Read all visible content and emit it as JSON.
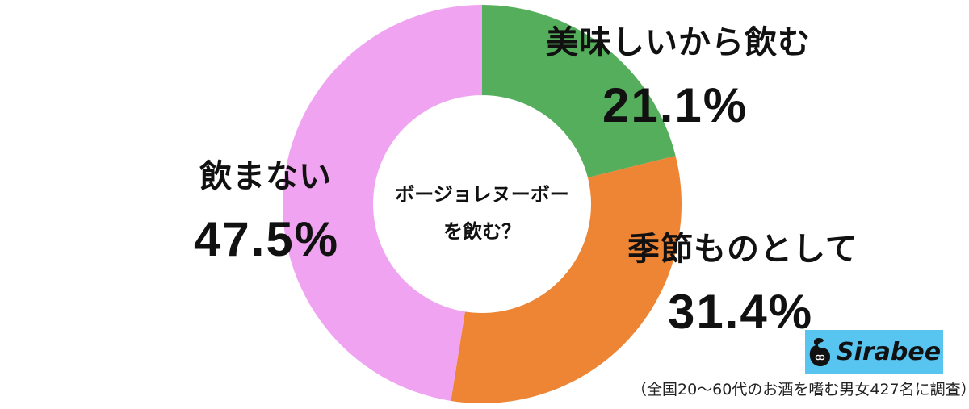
{
  "chart_data": {
    "type": "pie",
    "variant": "donut",
    "title": "ボージョレヌーボーを飲む？",
    "categories": [
      "美味しいから飲む",
      "季節ものとして",
      "飲まない"
    ],
    "values": [
      21.1,
      31.4,
      47.5
    ],
    "unit": "%",
    "colors": [
      "#55ae5c",
      "#ee8534",
      "#f0a3f0"
    ],
    "start_angle": "12 o'clock, clockwise",
    "legend": "direct labels"
  },
  "center_title": {
    "line1": "ボージョレヌーボー",
    "line2": "を飲む？"
  },
  "labels": {
    "tasty": {
      "name": "美味しいから飲む",
      "pct": "21.1%"
    },
    "seasonal": {
      "name": "季節ものとして",
      "pct": "31.4%"
    },
    "no": {
      "name": "飲まない",
      "pct": "47.5%"
    }
  },
  "logo": {
    "text": "Sirabee",
    "bg_color": "#58c4f0"
  },
  "footnote": "（全国20〜60代のお酒を嗜む男女427名に調査）"
}
